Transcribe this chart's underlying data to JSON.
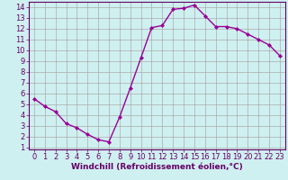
{
  "x": [
    0,
    1,
    2,
    3,
    4,
    5,
    6,
    7,
    8,
    9,
    10,
    11,
    12,
    13,
    14,
    15,
    16,
    17,
    18,
    19,
    20,
    21,
    22,
    23
  ],
  "y": [
    5.5,
    4.8,
    4.3,
    3.2,
    2.8,
    2.2,
    1.7,
    1.5,
    3.8,
    6.5,
    9.3,
    12.1,
    12.3,
    13.8,
    13.9,
    14.2,
    13.2,
    12.2,
    12.2,
    12.0,
    11.5,
    11.0,
    10.5,
    9.5
  ],
  "line_color": "#990099",
  "marker": "D",
  "marker_size": 2.0,
  "bg_color": "#cff0f0",
  "grid_color": "#aaaaaa",
  "xlabel": "Windchill (Refroidissement éolien,°C)",
  "ylabel": "",
  "xlim": [
    -0.5,
    23.5
  ],
  "ylim": [
    0.8,
    14.5
  ],
  "yticks": [
    1,
    2,
    3,
    4,
    5,
    6,
    7,
    8,
    9,
    10,
    11,
    12,
    13,
    14
  ],
  "xticks": [
    0,
    1,
    2,
    3,
    4,
    5,
    6,
    7,
    8,
    9,
    10,
    11,
    12,
    13,
    14,
    15,
    16,
    17,
    18,
    19,
    20,
    21,
    22,
    23
  ],
  "title_color": "#660066",
  "axis_color": "#660066",
  "tick_color": "#660066",
  "line_width": 1.0,
  "xlabel_fontsize": 6.5,
  "tick_fontsize": 6.0
}
